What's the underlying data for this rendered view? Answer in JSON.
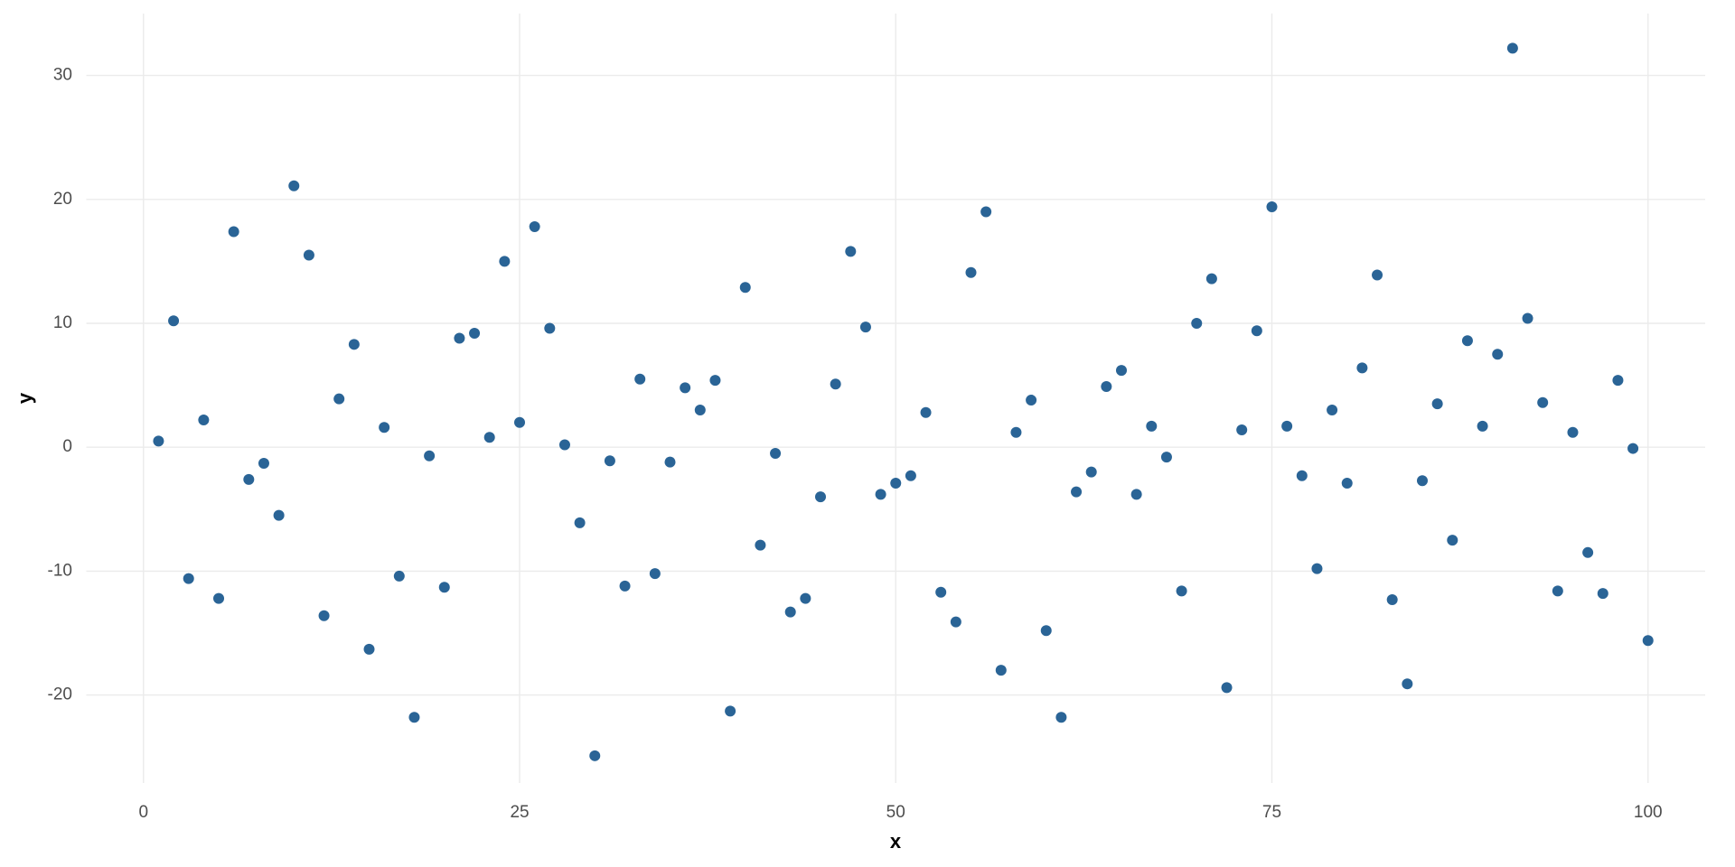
{
  "chart_data": {
    "type": "scatter",
    "x_label": "x",
    "y_label": "y",
    "x": [
      1,
      2,
      3,
      4,
      5,
      6,
      7,
      8,
      9,
      10,
      11,
      12,
      13,
      14,
      15,
      16,
      17,
      18,
      19,
      20,
      21,
      22,
      23,
      24,
      25,
      26,
      27,
      28,
      29,
      30,
      31,
      32,
      33,
      34,
      35,
      36,
      37,
      38,
      39,
      40,
      41,
      42,
      43,
      44,
      45,
      46,
      47,
      48,
      49,
      50,
      51,
      52,
      53,
      54,
      55,
      56,
      57,
      58,
      59,
      60,
      61,
      62,
      63,
      64,
      65,
      66,
      67,
      68,
      69,
      70,
      71,
      72,
      73,
      74,
      75,
      76,
      77,
      78,
      79,
      80,
      81,
      82,
      83,
      84,
      85,
      86,
      87,
      88,
      89,
      90,
      91,
      92,
      93,
      94,
      95,
      96,
      97,
      98,
      99,
      100
    ],
    "series": [
      {
        "name": "y",
        "color": "#2a6496",
        "values": [
          0.5,
          10.2,
          -10.6,
          2.2,
          -12.2,
          17.4,
          -2.6,
          -1.3,
          -5.5,
          21.1,
          15.5,
          -13.6,
          3.9,
          8.3,
          -16.3,
          1.6,
          -10.4,
          -21.8,
          -0.7,
          -11.3,
          8.8,
          9.2,
          0.8,
          15.0,
          2.0,
          17.8,
          9.6,
          0.2,
          -6.1,
          -24.9,
          -1.1,
          -11.2,
          5.5,
          -10.2,
          -1.2,
          4.8,
          3.0,
          5.4,
          -21.3,
          12.9,
          -7.9,
          -0.5,
          -13.3,
          -12.2,
          -4.0,
          5.1,
          15.8,
          9.7,
          -3.8,
          -2.9,
          -2.3,
          2.8,
          -11.7,
          -14.1,
          14.1,
          19.0,
          -18.0,
          1.2,
          3.8,
          -14.8,
          -21.8,
          -3.6,
          -2.0,
          4.9,
          6.2,
          -3.8,
          1.7,
          -0.8,
          -11.6,
          10.0,
          13.6,
          -19.4,
          1.4,
          9.4,
          19.4,
          1.7,
          -2.3,
          -9.8,
          3.0,
          -2.9,
          6.4,
          13.9,
          -12.3,
          -19.1,
          -2.7,
          3.5,
          -7.5,
          8.6,
          1.7,
          7.5,
          32.2,
          10.4,
          3.6,
          -11.6,
          1.2,
          -8.5,
          -11.8,
          5.4,
          -0.1,
          -15.6
        ]
      }
    ],
    "xlim": [
      -3.8,
      103.8
    ],
    "ylim": [
      -27.1,
      35
    ],
    "xticks": [
      0,
      25,
      50,
      75,
      100
    ],
    "yticks": [
      -20,
      -10,
      0,
      10,
      20,
      30
    ],
    "grid": true
  }
}
